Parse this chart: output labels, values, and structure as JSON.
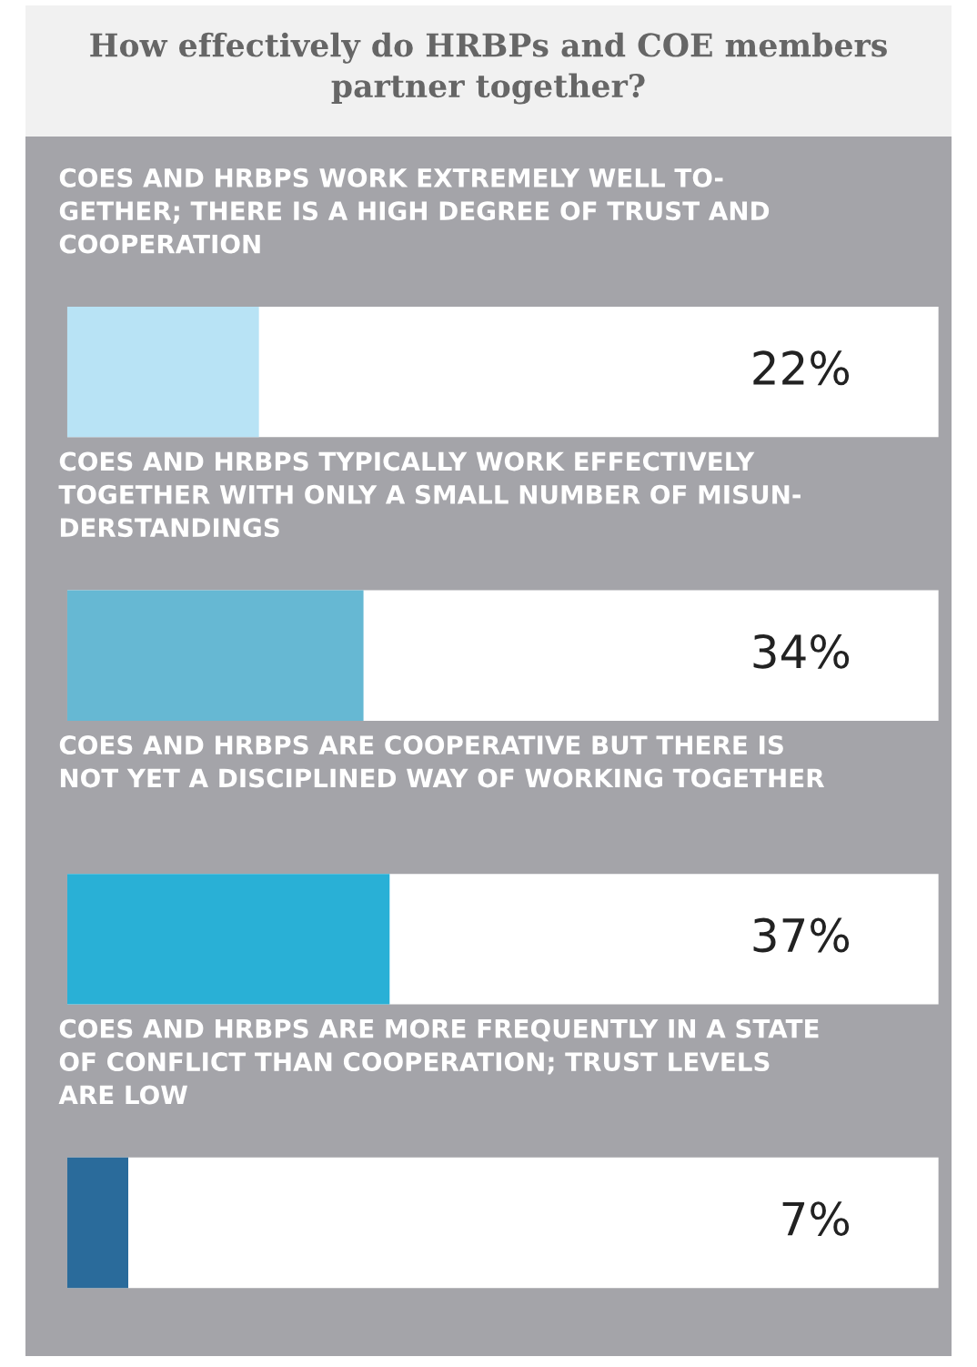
{
  "chart_data": {
    "type": "bar",
    "orientation": "horizontal",
    "title": "How effectively do HRBPs and COE members\npartner together?",
    "categories": [
      "COES AND HRBPS WORK EXTREMELY WELL TO-\nGETHER; THERE IS A HIGH DEGREE OF TRUST AND\nCOOPERATION",
      "COES AND HRBPS TYPICALLY WORK EFFECTIVELY\nTOGETHER WITH ONLY A SMALL NUMBER OF MISUN-\nDERSTANDINGS",
      "COES AND HRBPS ARE COOPERATIVE BUT THERE IS\nNOT YET A DISCIPLINED WAY OF WORKING TOGETHER",
      "COES AND HRBPS ARE MORE FREQUENTLY IN A STATE\nOF CONFLICT THAN COOPERATION; TRUST LEVELS\nARE LOW"
    ],
    "values": [
      22,
      34,
      37,
      7
    ],
    "colors": [
      "#b8e3f5",
      "#66b8d3",
      "#29b0d6",
      "#2a6b9b"
    ],
    "value_labels": [
      "22%",
      "34%",
      "37%",
      "7%"
    ],
    "xlim": [
      0,
      100
    ],
    "legend": false
  }
}
